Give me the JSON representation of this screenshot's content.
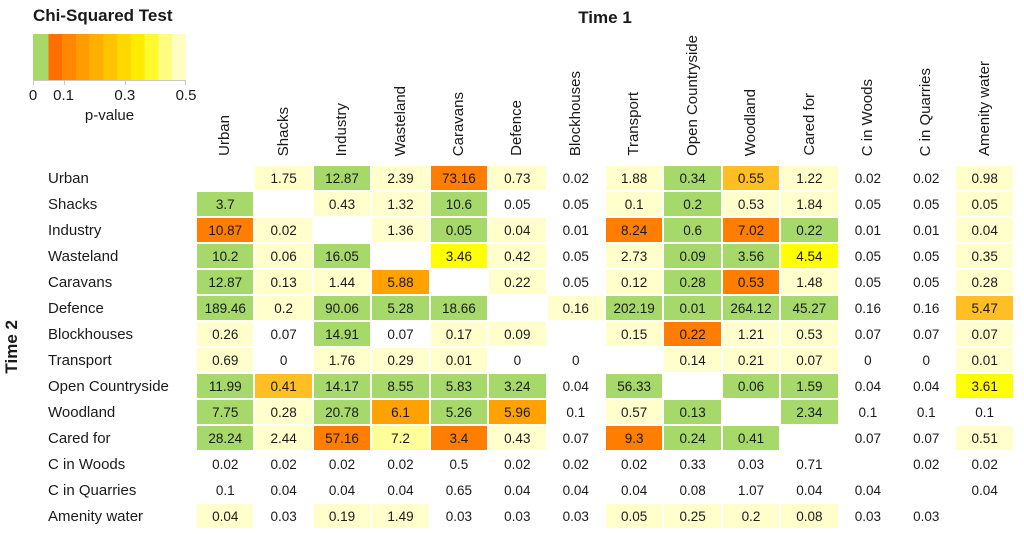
{
  "titles": {
    "legend_title": "Chi-Squared Test",
    "column_group": "Time 1",
    "row_group": "Time 2"
  },
  "legend": {
    "xlabel": "p-value",
    "ticks": [
      "0",
      "0.1",
      "0.3",
      "0.5"
    ],
    "tick_pos_percent": [
      0,
      20,
      60,
      100
    ],
    "green_hex": "#A6D96A",
    "green_span_percent": 10,
    "gradient_steps": [
      "#FF6F00",
      "#FF8800",
      "#FF9D00",
      "#FFAF00",
      "#FFC300",
      "#FFD800",
      "#FFEC00",
      "#FFFA2E",
      "#FFFD80",
      "#FFFEC2"
    ]
  },
  "chart_data": {
    "type": "heatmap",
    "title": "Chi-Squared Test",
    "xlabel_group": "Time 1",
    "ylabel_group": "Time 2",
    "legend_label": "p-value",
    "legend_range": [
      0,
      0.5
    ],
    "color_key_to_hex": {
      "g": "#A6D96A",
      "o": "#FF7D00",
      "o2": "#FFA200",
      "a": "#FFBF24",
      "y": "#FFFF00",
      "ly": "#FFFF99",
      "c": "#FFFFCC",
      "w": "#FFFFFF",
      "d": "#FFFFFF"
    },
    "color_key_meaning": {
      "g": "green p<0.05",
      "o": "strong orange",
      "o2": "amber orange",
      "a": "gold",
      "y": "yellow",
      "ly": "light yellow",
      "c": "cream pale yellow",
      "w": "no fill",
      "d": "diagonal blank"
    },
    "columns": [
      "Urban",
      "Shacks",
      "Industry",
      "Wasteland",
      "Caravans",
      "Defence",
      "Blockhouses",
      "Transport",
      "Open Countryside",
      "Woodland",
      "Cared for",
      "C in Woods",
      "C in Quarries",
      "Amenity water"
    ],
    "rows": [
      "Urban",
      "Shacks",
      "Industry",
      "Wasteland",
      "Caravans",
      "Defence",
      "Blockhouses",
      "Transport",
      "Open Countryside",
      "Woodland",
      "Cared for",
      "C in Woods",
      "C in Quarries",
      "Amenity water"
    ],
    "cells": [
      [
        [
          "",
          "d"
        ],
        [
          "1.75",
          "c"
        ],
        [
          "12.87",
          "g"
        ],
        [
          "2.39",
          "c"
        ],
        [
          "73.16",
          "o"
        ],
        [
          "0.73",
          "c"
        ],
        [
          "0.02",
          "w"
        ],
        [
          "1.88",
          "c"
        ],
        [
          "0.34",
          "g"
        ],
        [
          "0.55",
          "a"
        ],
        [
          "1.22",
          "c"
        ],
        [
          "0.02",
          "w"
        ],
        [
          "0.02",
          "w"
        ],
        [
          "0.98",
          "c"
        ]
      ],
      [
        [
          "3.7",
          "g"
        ],
        [
          "",
          "d"
        ],
        [
          "0.43",
          "c"
        ],
        [
          "1.32",
          "c"
        ],
        [
          "10.6",
          "g"
        ],
        [
          "0.05",
          "w"
        ],
        [
          "0.05",
          "w"
        ],
        [
          "0.1",
          "c"
        ],
        [
          "0.2",
          "g"
        ],
        [
          "0.53",
          "c"
        ],
        [
          "1.84",
          "c"
        ],
        [
          "0.05",
          "w"
        ],
        [
          "0.05",
          "w"
        ],
        [
          "0.05",
          "c"
        ]
      ],
      [
        [
          "10.87",
          "o"
        ],
        [
          "0.02",
          "c"
        ],
        [
          "",
          "d"
        ],
        [
          "1.36",
          "c"
        ],
        [
          "0.05",
          "g"
        ],
        [
          "0.04",
          "c"
        ],
        [
          "0.01",
          "w"
        ],
        [
          "8.24",
          "o"
        ],
        [
          "0.6",
          "g"
        ],
        [
          "7.02",
          "o"
        ],
        [
          "0.22",
          "g"
        ],
        [
          "0.01",
          "w"
        ],
        [
          "0.01",
          "w"
        ],
        [
          "0.04",
          "c"
        ]
      ],
      [
        [
          "10.2",
          "g"
        ],
        [
          "0.06",
          "c"
        ],
        [
          "16.05",
          "g"
        ],
        [
          "",
          "d"
        ],
        [
          "3.46",
          "y"
        ],
        [
          "0.42",
          "c"
        ],
        [
          "0.05",
          "w"
        ],
        [
          "2.73",
          "c"
        ],
        [
          "0.09",
          "g"
        ],
        [
          "3.56",
          "g"
        ],
        [
          "4.54",
          "y"
        ],
        [
          "0.05",
          "w"
        ],
        [
          "0.05",
          "w"
        ],
        [
          "0.35",
          "c"
        ]
      ],
      [
        [
          "12.87",
          "g"
        ],
        [
          "0.13",
          "c"
        ],
        [
          "1.44",
          "c"
        ],
        [
          "5.88",
          "o2"
        ],
        [
          "",
          "d"
        ],
        [
          "0.22",
          "c"
        ],
        [
          "0.05",
          "w"
        ],
        [
          "0.12",
          "c"
        ],
        [
          "0.28",
          "g"
        ],
        [
          "0.53",
          "o"
        ],
        [
          "1.48",
          "c"
        ],
        [
          "0.05",
          "w"
        ],
        [
          "0.05",
          "w"
        ],
        [
          "0.28",
          "c"
        ]
      ],
      [
        [
          "189.46",
          "g"
        ],
        [
          "0.2",
          "c"
        ],
        [
          "90.06",
          "g"
        ],
        [
          "5.28",
          "g"
        ],
        [
          "18.66",
          "g"
        ],
        [
          "",
          "d"
        ],
        [
          "0.16",
          "c"
        ],
        [
          "202.19",
          "g"
        ],
        [
          "0.01",
          "g"
        ],
        [
          "264.12",
          "g"
        ],
        [
          "45.27",
          "g"
        ],
        [
          "0.16",
          "w"
        ],
        [
          "0.16",
          "w"
        ],
        [
          "5.47",
          "a"
        ]
      ],
      [
        [
          "0.26",
          "c"
        ],
        [
          "0.07",
          "w"
        ],
        [
          "14.91",
          "g"
        ],
        [
          "0.07",
          "w"
        ],
        [
          "0.17",
          "c"
        ],
        [
          "0.09",
          "c"
        ],
        [
          "",
          "d"
        ],
        [
          "0.15",
          "c"
        ],
        [
          "0.22",
          "o"
        ],
        [
          "1.21",
          "c"
        ],
        [
          "0.53",
          "c"
        ],
        [
          "0.07",
          "w"
        ],
        [
          "0.07",
          "w"
        ],
        [
          "0.07",
          "c"
        ]
      ],
      [
        [
          "0.69",
          "c"
        ],
        [
          "0",
          "w"
        ],
        [
          "1.76",
          "c"
        ],
        [
          "0.29",
          "c"
        ],
        [
          "0.01",
          "c"
        ],
        [
          "0",
          "w"
        ],
        [
          "0",
          "w"
        ],
        [
          "",
          "d"
        ],
        [
          "0.14",
          "c"
        ],
        [
          "0.21",
          "c"
        ],
        [
          "0.07",
          "c"
        ],
        [
          "0",
          "w"
        ],
        [
          "0",
          "w"
        ],
        [
          "0.01",
          "c"
        ]
      ],
      [
        [
          "11.99",
          "g"
        ],
        [
          "0.41",
          "a"
        ],
        [
          "14.17",
          "g"
        ],
        [
          "8.55",
          "g"
        ],
        [
          "5.83",
          "g"
        ],
        [
          "3.24",
          "g"
        ],
        [
          "0.04",
          "w"
        ],
        [
          "56.33",
          "g"
        ],
        [
          "",
          "d"
        ],
        [
          "0.06",
          "g"
        ],
        [
          "1.59",
          "g"
        ],
        [
          "0.04",
          "w"
        ],
        [
          "0.04",
          "w"
        ],
        [
          "3.61",
          "y"
        ]
      ],
      [
        [
          "7.75",
          "g"
        ],
        [
          "0.28",
          "c"
        ],
        [
          "20.78",
          "g"
        ],
        [
          "6.1",
          "o2"
        ],
        [
          "5.26",
          "g"
        ],
        [
          "5.96",
          "o2"
        ],
        [
          "0.1",
          "w"
        ],
        [
          "0.57",
          "c"
        ],
        [
          "0.13",
          "g"
        ],
        [
          "",
          "d"
        ],
        [
          "2.34",
          "g"
        ],
        [
          "0.1",
          "w"
        ],
        [
          "0.1",
          "w"
        ],
        [
          "0.1",
          "w"
        ]
      ],
      [
        [
          "28.24",
          "g"
        ],
        [
          "2.44",
          "c"
        ],
        [
          "57.16",
          "o"
        ],
        [
          "7.2",
          "ly"
        ],
        [
          "3.4",
          "o"
        ],
        [
          "0.43",
          "c"
        ],
        [
          "0.07",
          "w"
        ],
        [
          "9.3",
          "o"
        ],
        [
          "0.24",
          "g"
        ],
        [
          "0.41",
          "g"
        ],
        [
          "",
          "d"
        ],
        [
          "0.07",
          "w"
        ],
        [
          "0.07",
          "w"
        ],
        [
          "0.51",
          "c"
        ]
      ],
      [
        [
          "0.02",
          "w"
        ],
        [
          "0.02",
          "w"
        ],
        [
          "0.02",
          "w"
        ],
        [
          "0.02",
          "w"
        ],
        [
          "0.5",
          "w"
        ],
        [
          "0.02",
          "w"
        ],
        [
          "0.02",
          "w"
        ],
        [
          "0.02",
          "w"
        ],
        [
          "0.33",
          "w"
        ],
        [
          "0.03",
          "w"
        ],
        [
          "0.71",
          "w"
        ],
        [
          "",
          "d"
        ],
        [
          "0.02",
          "w"
        ],
        [
          "0.02",
          "w"
        ]
      ],
      [
        [
          "0.1",
          "w"
        ],
        [
          "0.04",
          "w"
        ],
        [
          "0.04",
          "w"
        ],
        [
          "0.04",
          "w"
        ],
        [
          "0.65",
          "w"
        ],
        [
          "0.04",
          "w"
        ],
        [
          "0.04",
          "w"
        ],
        [
          "0.04",
          "w"
        ],
        [
          "0.08",
          "w"
        ],
        [
          "1.07",
          "w"
        ],
        [
          "0.04",
          "w"
        ],
        [
          "0.04",
          "w"
        ],
        [
          "",
          "d"
        ],
        [
          "0.04",
          "w"
        ]
      ],
      [
        [
          "0.04",
          "c"
        ],
        [
          "0.03",
          "w"
        ],
        [
          "0.19",
          "c"
        ],
        [
          "1.49",
          "c"
        ],
        [
          "0.03",
          "w"
        ],
        [
          "0.03",
          "w"
        ],
        [
          "0.03",
          "w"
        ],
        [
          "0.05",
          "c"
        ],
        [
          "0.25",
          "c"
        ],
        [
          "0.2",
          "c"
        ],
        [
          "0.08",
          "c"
        ],
        [
          "0.03",
          "w"
        ],
        [
          "0.03",
          "w"
        ],
        [
          "",
          "d"
        ]
      ]
    ]
  }
}
